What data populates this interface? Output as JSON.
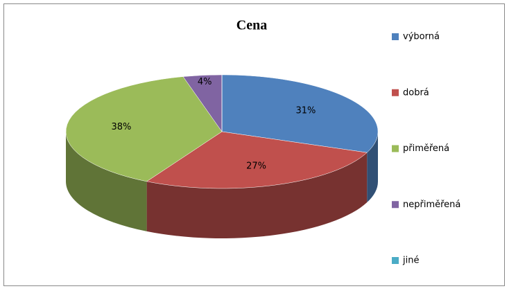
{
  "chart_data": {
    "type": "pie3d",
    "title": "Cena",
    "categories": [
      "výborná",
      "dobrá",
      "přiměřená",
      "nepřiměřená",
      "jiné"
    ],
    "values": [
      31,
      27,
      38,
      4,
      0
    ],
    "value_labels": [
      "31%",
      "27%",
      "38%",
      "4%",
      null
    ],
    "colors": [
      "#4f81bd",
      "#c0504d",
      "#9bbb59",
      "#8064a2",
      "#4bacc6"
    ],
    "legend": "right"
  }
}
